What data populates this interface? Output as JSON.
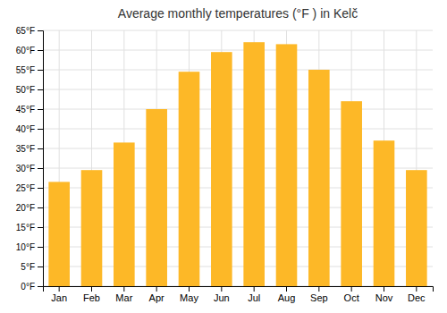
{
  "chart_data": {
    "type": "bar",
    "title": "Average monthly temperatures (°F ) in Kelč",
    "categories": [
      "Jan",
      "Feb",
      "Mar",
      "Apr",
      "May",
      "Jun",
      "Jul",
      "Aug",
      "Sep",
      "Oct",
      "Nov",
      "Dec"
    ],
    "values": [
      26.5,
      29.5,
      36.5,
      45.0,
      54.5,
      59.5,
      62.0,
      61.5,
      55.0,
      47.0,
      37.0,
      29.5
    ],
    "color": "#FDB827",
    "ylim": [
      0,
      65
    ],
    "yticks": [
      {
        "value": 0,
        "label": "0°F"
      },
      {
        "value": 5,
        "label": "5°F"
      },
      {
        "value": 10,
        "label": "10°F"
      },
      {
        "value": 15,
        "label": "15°F"
      },
      {
        "value": 20,
        "label": "20°F"
      },
      {
        "value": 25,
        "label": "25°F"
      },
      {
        "value": 30,
        "label": "30°F"
      },
      {
        "value": 35,
        "label": "35°F"
      },
      {
        "value": 40,
        "label": "40°F"
      },
      {
        "value": 45,
        "label": "45°F"
      },
      {
        "value": 50,
        "label": "50°F"
      },
      {
        "value": 55,
        "label": "55°F"
      },
      {
        "value": 60,
        "label": "60°F"
      },
      {
        "value": 65,
        "label": "65°F"
      }
    ],
    "grid": true
  }
}
